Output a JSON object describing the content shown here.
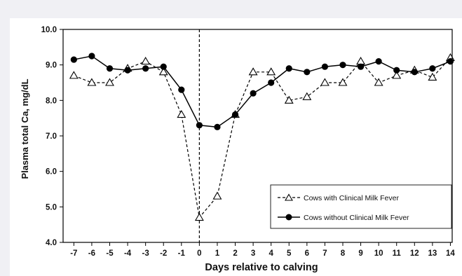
{
  "chart_data": {
    "type": "line",
    "xlabel": "Days relative to calving",
    "ylabel": "Plasma total Ca, mg/dL",
    "x": [
      -7,
      -6,
      -5,
      -4,
      -3,
      -2,
      -1,
      0,
      1,
      2,
      3,
      4,
      5,
      6,
      7,
      8,
      9,
      10,
      11,
      12,
      13,
      14
    ],
    "xlim": [
      -7.6,
      14.1
    ],
    "ylim": [
      4.0,
      10.0
    ],
    "yticks": [
      4.0,
      5.0,
      6.0,
      7.0,
      8.0,
      9.0,
      10.0
    ],
    "xticks": [
      -7,
      -6,
      -5,
      -4,
      -3,
      -2,
      -1,
      0,
      1,
      2,
      3,
      4,
      5,
      6,
      7,
      8,
      9,
      10,
      11,
      12,
      13,
      14
    ],
    "vertical_reference_line_x": 0,
    "grid": false,
    "legend_position": "bottom-right",
    "series": [
      {
        "name": "Cows with Clinical Milk Fever",
        "marker": "open-triangle",
        "line_style": "dashed",
        "color": "#000000",
        "values": [
          8.7,
          8.5,
          8.5,
          8.9,
          9.1,
          8.8,
          7.6,
          4.7,
          5.3,
          7.6,
          8.8,
          8.8,
          8.0,
          8.1,
          8.5,
          8.5,
          9.1,
          8.5,
          8.7,
          8.85,
          8.65,
          9.2
        ]
      },
      {
        "name": "Cows without Clinical Milk Fever",
        "marker": "filled-circle",
        "line_style": "solid",
        "color": "#000000",
        "values": [
          9.15,
          9.25,
          8.9,
          8.85,
          8.9,
          8.95,
          8.3,
          7.3,
          7.25,
          7.6,
          8.2,
          8.5,
          8.9,
          8.8,
          8.95,
          9.0,
          8.95,
          9.1,
          8.85,
          8.8,
          8.9,
          9.1
        ]
      }
    ]
  }
}
